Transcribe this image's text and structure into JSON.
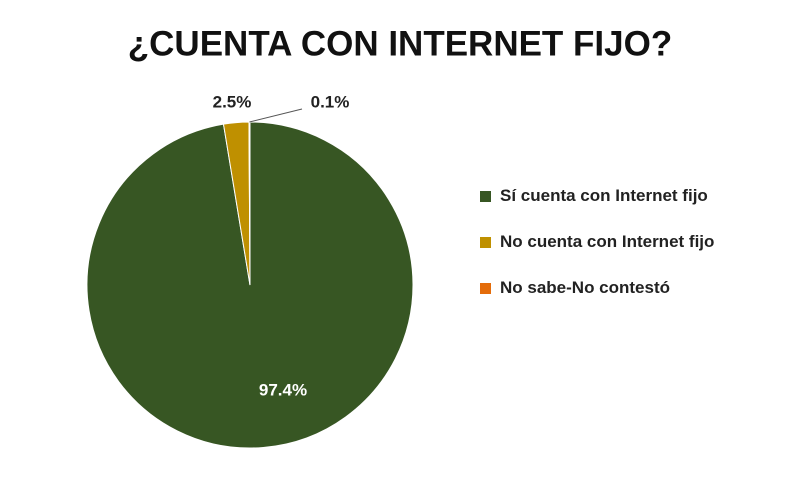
{
  "chart_data": {
    "type": "pie",
    "title": "¿CUENTA CON INTERNET FIJO?",
    "categories": [
      "Sí cuenta con Internet fijo",
      "No cuenta con Internet fijo",
      "No sabe-No contestó"
    ],
    "values": [
      97.4,
      2.5,
      0.1
    ],
    "value_labels": [
      "97.4%",
      "2.5%",
      "0.1%"
    ],
    "colors": [
      "#375623",
      "#bf9000",
      "#e46c0a"
    ],
    "legend": "right"
  }
}
